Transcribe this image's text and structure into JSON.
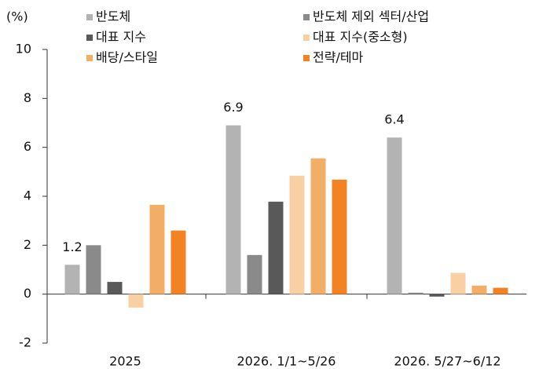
{
  "chart_data": {
    "type": "bar",
    "unit_label": "(%)",
    "categories": [
      "2025",
      "2026. 1/1~5/26",
      "2026. 5/27~6/12"
    ],
    "series": [
      {
        "name": "반도체",
        "color": "#b3b3b3",
        "values": [
          1.2,
          6.9,
          6.4
        ]
      },
      {
        "name": "반도체 제외 섹터/산업",
        "color": "#8a8a8a",
        "values": [
          2.0,
          1.6,
          0.06
        ]
      },
      {
        "name": "대표 지수",
        "color": "#595959",
        "values": [
          0.5,
          3.78,
          -0.1
        ]
      },
      {
        "name": "대표 지수(중소형)",
        "color": "#f8d0a4",
        "values": [
          -0.55,
          4.84,
          0.87
        ]
      },
      {
        "name": "배당/스타일",
        "color": "#f2ae66",
        "values": [
          3.65,
          5.55,
          0.35
        ]
      },
      {
        "name": "전략/테마",
        "color": "#f28222",
        "values": [
          2.6,
          4.68,
          0.26
        ]
      }
    ],
    "labeled_series": 0,
    "ylim": [
      -2,
      10
    ],
    "yticks": [
      -2,
      0,
      2,
      4,
      6,
      8,
      10
    ],
    "grid": false
  }
}
